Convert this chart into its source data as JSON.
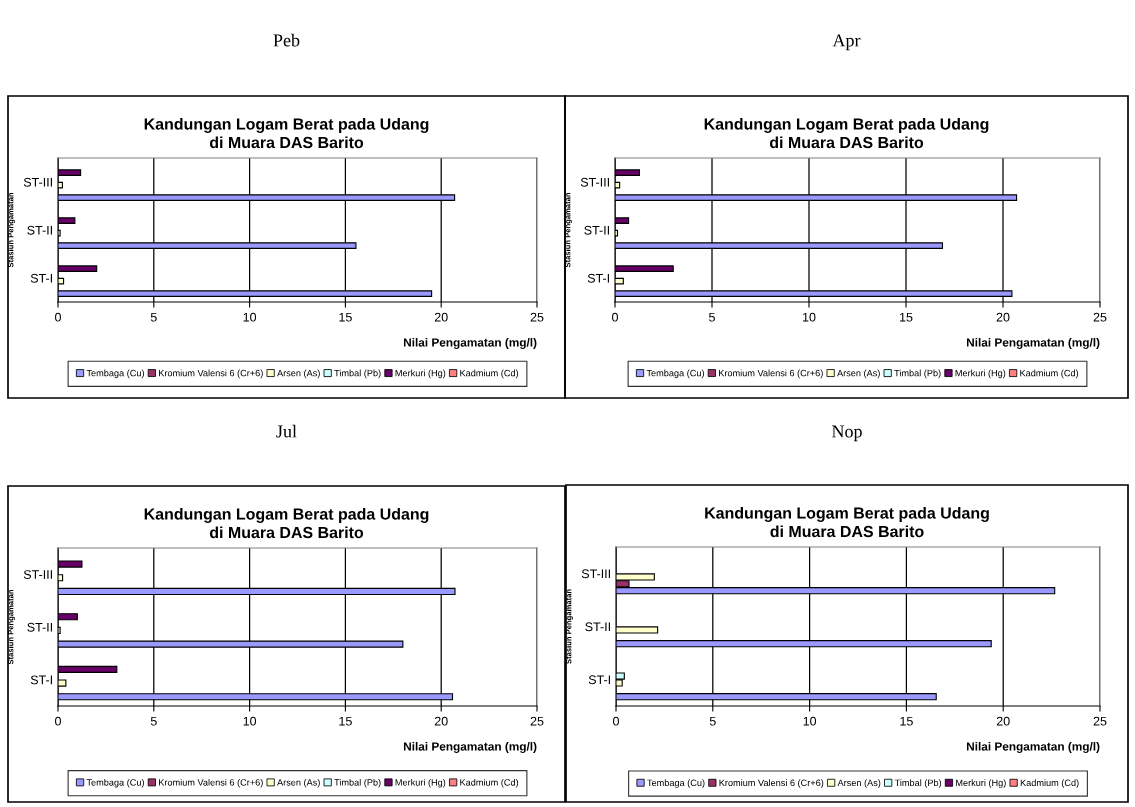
{
  "chart_data": [
    {
      "type": "bar",
      "orientation": "horizontal",
      "subtitle": "Peb",
      "title": "Kandungan Logam Berat pada Udang\ndi Muara DAS Barito",
      "xlabel": "Nilai Pengamatan (mg/l)",
      "ylabel": "Stasiun Pengamatan",
      "categories": [
        "ST-III",
        "ST-II",
        "ST-I"
      ],
      "xlim": [
        0,
        25
      ],
      "xticks": [
        0,
        5,
        10,
        15,
        20,
        25
      ],
      "grid": "x",
      "legend": "bottom",
      "series": [
        {
          "name": "Tembaga (Cu)",
          "color": "#9999ff",
          "values": [
            20.7,
            15.55,
            19.5
          ]
        },
        {
          "name": "Kromium Valensi 6 (Cr+6)",
          "color": "#993366",
          "values": [
            null,
            null,
            null
          ]
        },
        {
          "name": "Arsen (As)",
          "color": "#ffffcc",
          "values": [
            0.23,
            0.11,
            0.29
          ]
        },
        {
          "name": "Timbal (Pb)",
          "color": "#ccffff",
          "values": [
            null,
            null,
            null
          ]
        },
        {
          "name": "Merkuri (Hg)",
          "color": "#660066",
          "values": [
            1.18,
            0.88,
            2.02
          ]
        },
        {
          "name": "Kadmium (Cd)",
          "color": "#ff8080",
          "values": [
            null,
            null,
            null
          ]
        }
      ]
    },
    {
      "type": "bar",
      "orientation": "horizontal",
      "subtitle": "Apr",
      "title": "Kandungan Logam Berat pada Udang\ndi Muara DAS Barito",
      "xlabel": "Nilai Pengamatan (mg/l)",
      "ylabel": "Stasiun Pengamatan",
      "categories": [
        "ST-III",
        "ST-II",
        "ST-I"
      ],
      "xlim": [
        0,
        25
      ],
      "xticks": [
        0,
        5,
        10,
        15,
        20,
        25
      ],
      "grid": "x",
      "legend": "bottom",
      "series": [
        {
          "name": "Tembaga (Cu)",
          "color": "#9999ff",
          "values": [
            20.7,
            16.88,
            20.46
          ]
        },
        {
          "name": "Kromium Valensi 6 (Cr+6)",
          "color": "#993366",
          "values": [
            null,
            null,
            null
          ]
        },
        {
          "name": "Arsen (As)",
          "color": "#ffffcc",
          "values": [
            0.24,
            0.13,
            0.43
          ]
        },
        {
          "name": "Timbal (Pb)",
          "color": "#ccffff",
          "values": [
            null,
            null,
            null
          ]
        },
        {
          "name": "Merkuri (Hg)",
          "color": "#660066",
          "values": [
            1.26,
            0.7,
            3.0
          ]
        },
        {
          "name": "Kadmium (Cd)",
          "color": "#ff8080",
          "values": [
            null,
            null,
            null
          ]
        }
      ]
    },
    {
      "type": "bar",
      "orientation": "horizontal",
      "subtitle": "Jul",
      "title": "Kandungan Logam Berat pada Udang\ndi Muara DAS Barito",
      "xlabel": "Nilai Pengamatan (mg/l)",
      "ylabel": "Stasiun Pengamatan",
      "categories": [
        "ST-III",
        "ST-II",
        "ST-I"
      ],
      "xlim": [
        0,
        25
      ],
      "xticks": [
        0,
        5,
        10,
        15,
        20,
        25
      ],
      "grid": "x",
      "legend": "bottom",
      "series": [
        {
          "name": "Tembaga (Cu)",
          "color": "#9999ff",
          "values": [
            20.72,
            18.0,
            20.59
          ]
        },
        {
          "name": "Kromium Valensi 6 (Cr+6)",
          "color": "#993366",
          "values": [
            null,
            null,
            null
          ]
        },
        {
          "name": "Arsen (As)",
          "color": "#ffffcc",
          "values": [
            0.24,
            0.11,
            0.41
          ]
        },
        {
          "name": "Timbal (Pb)",
          "color": "#ccffff",
          "values": [
            null,
            null,
            null
          ]
        },
        {
          "name": "Merkuri (Hg)",
          "color": "#660066",
          "values": [
            1.25,
            1.01,
            3.07
          ]
        },
        {
          "name": "Kadmium (Cd)",
          "color": "#ff8080",
          "values": [
            null,
            null,
            null
          ]
        }
      ]
    },
    {
      "type": "bar",
      "orientation": "horizontal",
      "subtitle": "Nop",
      "title": "Kandungan Logam Berat pada Udang\ndi Muara DAS Barito",
      "xlabel": "Nilai Pengamatan (mg/l)",
      "ylabel": "Stasiun Pengamatan",
      "categories": [
        "ST-III",
        "ST-II",
        "ST-I"
      ],
      "xlim": [
        0,
        25
      ],
      "xticks": [
        0,
        5,
        10,
        15,
        20,
        25
      ],
      "grid": "x",
      "legend": "bottom",
      "series": [
        {
          "name": "Tembaga (Cu)",
          "color": "#9999ff",
          "values": [
            22.66,
            19.38,
            16.54
          ]
        },
        {
          "name": "Kromium Valensi 6 (Cr+6)",
          "color": "#993366",
          "values": [
            0.67,
            null,
            null
          ]
        },
        {
          "name": "Arsen (As)",
          "color": "#ffffcc",
          "values": [
            1.98,
            2.15,
            0.32
          ]
        },
        {
          "name": "Timbal (Pb)",
          "color": "#ccffff",
          "values": [
            null,
            null,
            0.43
          ]
        },
        {
          "name": "Merkuri (Hg)",
          "color": "#660066",
          "values": [
            null,
            null,
            null
          ]
        },
        {
          "name": "Kadmium (Cd)",
          "color": "#ff8080",
          "values": [
            null,
            null,
            null
          ]
        }
      ]
    }
  ]
}
